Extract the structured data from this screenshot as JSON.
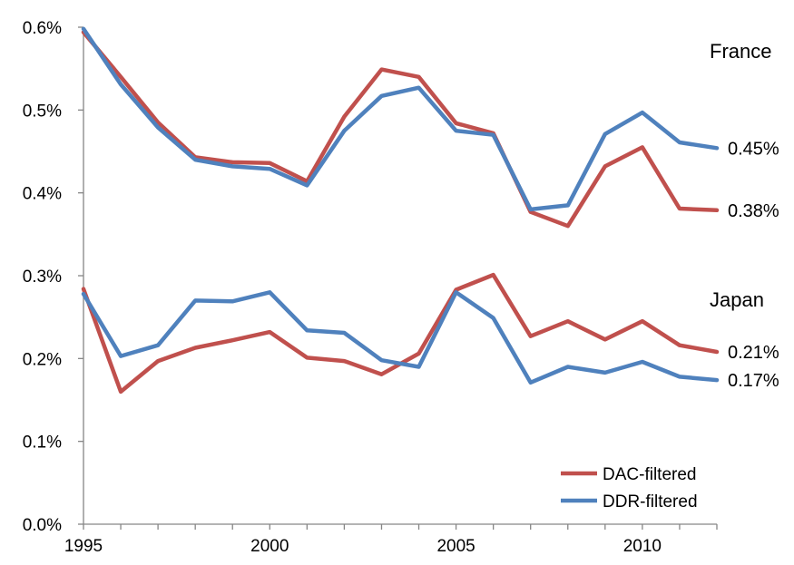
{
  "chart_data": {
    "type": "line",
    "title": "",
    "xlabel": "",
    "ylabel": "",
    "x": [
      1995,
      1996,
      1997,
      1998,
      1999,
      2000,
      2001,
      2002,
      2003,
      2004,
      2005,
      2006,
      2007,
      2008,
      2009,
      2010,
      2011,
      2012
    ],
    "xlim": [
      1995,
      2012
    ],
    "ylim": [
      0,
      0.6
    ],
    "x_ticks": [
      1995,
      2000,
      2005,
      2010
    ],
    "x_tick_labels": [
      "1995",
      "2000",
      "2005",
      "2010"
    ],
    "y_ticks": [
      0,
      0.1,
      0.2,
      0.3,
      0.4,
      0.5,
      0.6
    ],
    "y_tick_labels": [
      "0.0%",
      "0.1%",
      "0.2%",
      "0.3%",
      "0.4%",
      "0.5%",
      "0.6%"
    ],
    "grid": false,
    "legend_position": "bottom-right",
    "colors": {
      "DAC-filtered": "#c0504d",
      "DDR-filtered": "#4f81bd"
    },
    "legend": [
      {
        "name": "DAC-filtered",
        "color": "#c0504d"
      },
      {
        "name": "DDR-filtered",
        "color": "#4f81bd"
      }
    ],
    "series": [
      {
        "name": "DAC-filtered",
        "group": "France",
        "color": "#c0504d",
        "values": [
          0.594,
          0.54,
          0.485,
          0.443,
          0.437,
          0.436,
          0.414,
          0.492,
          0.549,
          0.54,
          0.484,
          0.472,
          0.377,
          0.36,
          0.432,
          0.455,
          0.381,
          0.379
        ],
        "end_label": "0.38%"
      },
      {
        "name": "DDR-filtered",
        "group": "France",
        "color": "#4f81bd",
        "values": [
          0.598,
          0.531,
          0.479,
          0.44,
          0.432,
          0.429,
          0.409,
          0.475,
          0.517,
          0.527,
          0.475,
          0.47,
          0.38,
          0.385,
          0.471,
          0.497,
          0.461,
          0.454
        ],
        "end_label": "0.45%"
      },
      {
        "name": "DAC-filtered",
        "group": "Japan",
        "color": "#c0504d",
        "values": [
          0.284,
          0.16,
          0.197,
          0.213,
          0.222,
          0.232,
          0.201,
          0.197,
          0.181,
          0.206,
          0.283,
          0.301,
          0.227,
          0.245,
          0.223,
          0.245,
          0.216,
          0.208
        ],
        "end_label": "0.21%"
      },
      {
        "name": "DDR-filtered",
        "group": "Japan",
        "color": "#4f81bd",
        "values": [
          0.278,
          0.203,
          0.216,
          0.27,
          0.269,
          0.28,
          0.234,
          0.231,
          0.198,
          0.19,
          0.28,
          0.249,
          0.171,
          0.19,
          0.183,
          0.196,
          0.178,
          0.174
        ],
        "end_label": "0.17%"
      }
    ],
    "annotations": [
      "France",
      "Japan"
    ]
  }
}
